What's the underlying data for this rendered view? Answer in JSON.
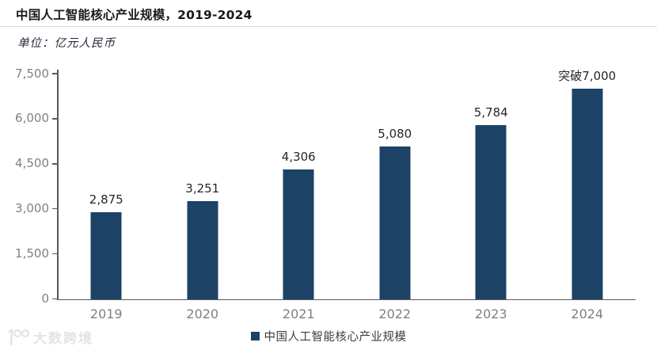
{
  "header": {
    "title": "中国人工智能核心产业规模，2019-2024",
    "subtitle": "单位：亿元人民币"
  },
  "legend": {
    "label": "中国人工智能核心产业规模"
  },
  "watermark": {
    "text": "大数跨境"
  },
  "colors": {
    "bar": "#1c4266",
    "axis": "#595959",
    "y_tick_label": "#808080",
    "x_tick_label": "#7f7f7f",
    "value_label": "#262626",
    "divider": "#d9d9d9"
  },
  "chart_data": {
    "type": "bar",
    "title": "中国人工智能核心产业规模，2019-2024",
    "unit_label": "单位：亿元人民币",
    "categories": [
      "2019",
      "2020",
      "2021",
      "2022",
      "2023",
      "2024"
    ],
    "values": [
      2875,
      3251,
      4306,
      5080,
      5784,
      7000
    ],
    "value_labels": [
      "2,875",
      "3,251",
      "4,306",
      "5,080",
      "5,784",
      "突破7,000"
    ],
    "series_name": "中国人工智能核心产业规模",
    "ylim": [
      0,
      7500
    ],
    "y_ticks": [
      0,
      1500,
      3000,
      4500,
      6000,
      7500
    ],
    "y_tick_labels": [
      "0",
      "1,500",
      "3,000",
      "4,500",
      "6,000",
      "7,500"
    ],
    "grid": false,
    "legend_position": "bottom"
  }
}
